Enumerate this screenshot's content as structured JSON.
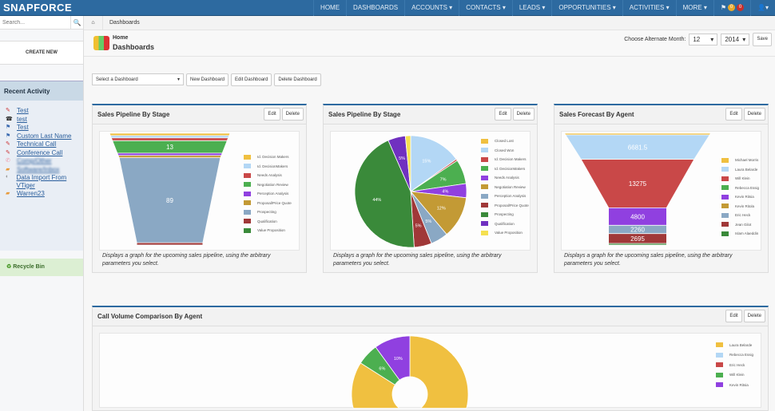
{
  "nav": {
    "logo": "SNAPFORCE",
    "items": [
      "HOME",
      "DASHBOARDS",
      "ACCOUNTS ▾",
      "CONTACTS ▾",
      "LEADS ▾",
      "OPPORTUNITIES ▾",
      "ACTIVITIES ▾",
      "MORE ▾"
    ],
    "badge1": "0",
    "badge2": "0",
    "user": "▾"
  },
  "sidebar": {
    "search_placeholder": "Search...",
    "create_new": "CREATE NEW",
    "recent_title": "Recent Activity",
    "recent": [
      {
        "label": "Test",
        "icon": "pencil-icon"
      },
      {
        "label": "test",
        "icon": "phone-icon"
      },
      {
        "label": "Test",
        "icon": "flag-icon"
      },
      {
        "label": "Custom Last Name",
        "icon": "flag-icon"
      },
      {
        "label": "Technical Call",
        "icon": "pencil-icon"
      },
      {
        "label": "Conference Call",
        "icon": "pencil-icon"
      },
      {
        "label": "Comp/Other",
        "icon": "contact-icon"
      },
      {
        "label": "Software/Inbox",
        "icon": "folder-icon"
      },
      {
        "label": "Data Import From VTiger",
        "icon": "import-icon"
      },
      {
        "label": "Warren23",
        "icon": "folder-icon"
      }
    ],
    "recycle": "Recycle Bin"
  },
  "breadcrumb": {
    "current": "Dashboards"
  },
  "header": {
    "home": "Home",
    "title": "Dashboards",
    "alt_month_label": "Choose Alternate Month:",
    "month": "12",
    "year": "2014",
    "save": "Save"
  },
  "controls": {
    "select": "Select a Dashboard",
    "new": "New Dashboard",
    "edit": "Edit Dashboard",
    "delete": "Delete Dashboard"
  },
  "panel_buttons": {
    "edit": "Edit",
    "delete": "Delete"
  },
  "description": "Displays a graph for the upcoming sales pipeline, using the arbitrary parameters you select.",
  "chart_data": [
    {
      "type": "funnel",
      "title": "Sales Pipeline By Stage",
      "categories": [
        "Id. Decision Makers",
        "Id. DecisionMakers",
        "Needs Analysis",
        "Negotiation Review",
        "Perception Analysis",
        "Proposal/Price Quote",
        "Prospecting",
        "Qualification",
        "Value Proposition"
      ],
      "values": [
        0.5,
        0.5,
        3,
        13,
        2,
        2,
        89,
        2,
        0
      ],
      "labels": [
        "",
        "",
        "",
        "13",
        "",
        "",
        "89",
        "",
        ""
      ],
      "colors": [
        "#f0c040",
        "#b3d7f5",
        "#c94848",
        "#4caf50",
        "#9040e0",
        "#c39a35",
        "#8aa8c4",
        "#a03838",
        "#3a8a3a"
      ]
    },
    {
      "type": "pie",
      "title": "Sales Pipeline By Stage",
      "categories": [
        "Closed Lost",
        "Closed Won",
        "Id. Decision Makers",
        "Id. DecisionMakers",
        "Needs Analysis",
        "Negotiation Review",
        "Perception Analysis",
        "Proposal/Price Quote",
        "Prospecting",
        "Qualification",
        "Value Proposition"
      ],
      "values": [
        0,
        15,
        0.5,
        7,
        4,
        12,
        5,
        5,
        44,
        5,
        1.5
      ],
      "labels": [
        "",
        "15%",
        "",
        "7%",
        "4%",
        "12%",
        "5%",
        "5%",
        "44%",
        "5%",
        ""
      ],
      "colors": [
        "#f0c040",
        "#b3d7f5",
        "#c94848",
        "#4caf50",
        "#9040e0",
        "#c39a35",
        "#8aa8c4",
        "#a03838",
        "#3a8a3a",
        "#7030c0",
        "#f5e050"
      ]
    },
    {
      "type": "funnel",
      "title": "Sales Forecast By Agent",
      "categories": [
        "Michael Morris",
        "Laura Belarde",
        "Will Klein",
        "Rebecca Essig",
        "Kevin Ritsia",
        "Kevin Ritola",
        "Eric Heck",
        "Jean Gilot",
        "Islam Alaeddin"
      ],
      "values": [
        300,
        6681.5,
        13275,
        0,
        4800,
        0,
        2260,
        2695,
        300
      ],
      "labels": [
        "",
        "6681.5",
        "13275",
        "",
        "4800",
        "",
        "2260",
        "2695",
        ""
      ],
      "colors": [
        "#f0c040",
        "#b3d7f5",
        "#c94848",
        "#4caf50",
        "#9040e0",
        "#c39a35",
        "#8aa8c4",
        "#a03838",
        "#3a8a3a"
      ]
    },
    {
      "type": "donut",
      "title": "Call Volume Comparison By Agent",
      "categories": [
        "Laura Belarde",
        "Rebecca Essig",
        "Eric Heck",
        "Will Klein",
        "Kevin Ritsia"
      ],
      "values": [
        84,
        0,
        0,
        6,
        10
      ],
      "labels": [
        "",
        "",
        "",
        "6%",
        "10%"
      ],
      "colors": [
        "#f0c040",
        "#b3d7f5",
        "#c94848",
        "#4caf50",
        "#9040e0"
      ]
    }
  ]
}
